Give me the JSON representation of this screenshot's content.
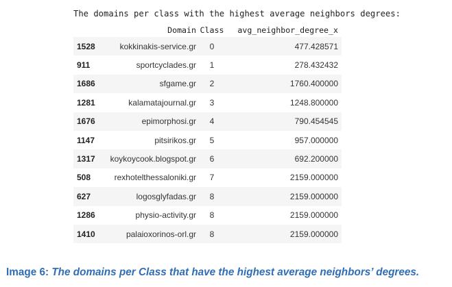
{
  "output": {
    "print_text": "The domains per class with the highest average neighbors degrees:"
  },
  "table": {
    "columns": {
      "index": "",
      "domain": "Domain",
      "class": "Class",
      "avg": "avg_neighbor_degree_x"
    },
    "rows": [
      {
        "index": "1528",
        "domain": "kokkinakis-service.gr",
        "class": "0",
        "avg": "477.428571"
      },
      {
        "index": "911",
        "domain": "sportcyclades.gr",
        "class": "1",
        "avg": "278.432432"
      },
      {
        "index": "1686",
        "domain": "sfgame.gr",
        "class": "2",
        "avg": "1760.400000"
      },
      {
        "index": "1281",
        "domain": "kalamatajournal.gr",
        "class": "3",
        "avg": "1248.800000"
      },
      {
        "index": "1676",
        "domain": "epimorphosi.gr",
        "class": "4",
        "avg": "790.454545"
      },
      {
        "index": "1147",
        "domain": "pitsirikos.gr",
        "class": "5",
        "avg": "957.000000"
      },
      {
        "index": "1317",
        "domain": "koykoycook.blogspot.gr",
        "class": "6",
        "avg": "692.200000"
      },
      {
        "index": "508",
        "domain": "rexhotelthessaloniki.gr",
        "class": "7",
        "avg": "2159.000000"
      },
      {
        "index": "627",
        "domain": "logosglyfadas.gr",
        "class": "8",
        "avg": "2159.000000"
      },
      {
        "index": "1286",
        "domain": "physio-activity.gr",
        "class": "8",
        "avg": "2159.000000"
      },
      {
        "index": "1410",
        "domain": "palaioxorinos-orl.gr",
        "class": "8",
        "avg": "2159.000000"
      }
    ]
  },
  "caption": {
    "label": "Image 6: ",
    "text": "The domains per Class that have the highest average neighbors’ degrees."
  },
  "colors": {
    "caption": "#2f6db5",
    "row_stripe": "#f5f5f5",
    "text": "#222222"
  }
}
